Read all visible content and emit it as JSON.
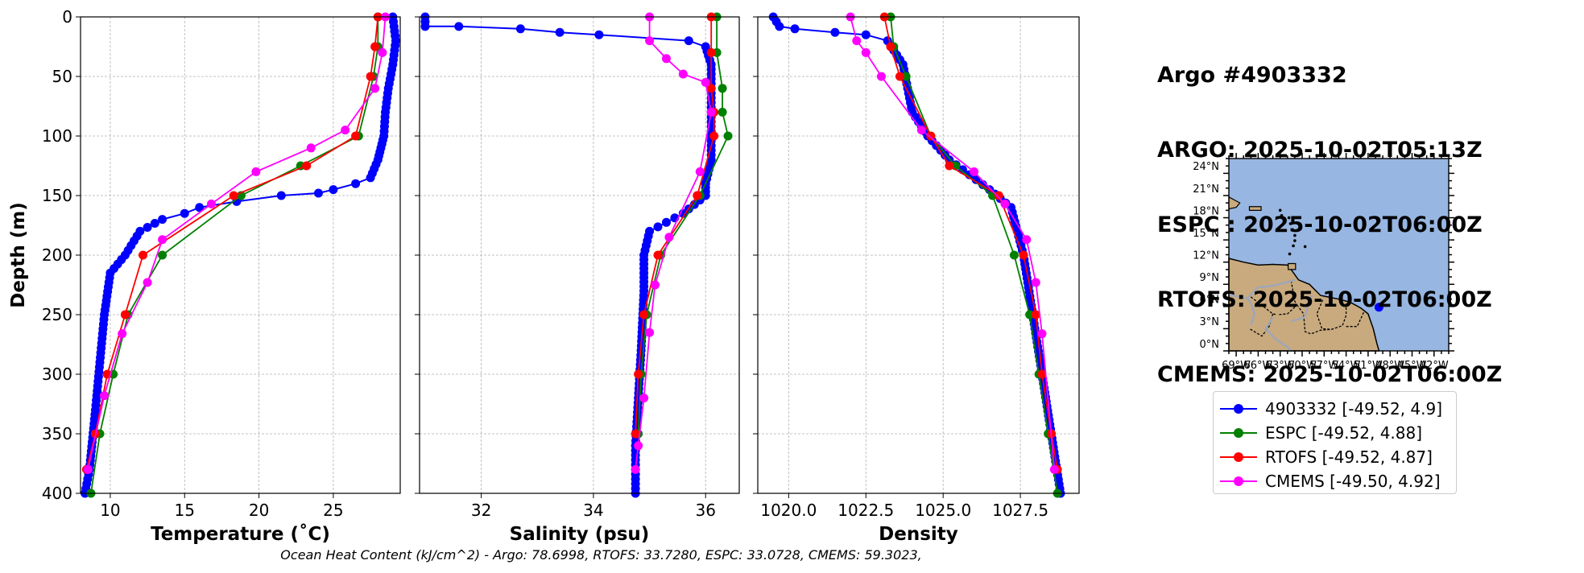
{
  "title": {
    "lines": [
      "Argo #4903332",
      "ARGO: 2025-10-02T05:13Z",
      "ESPC : 2025-10-02T06:00Z",
      "RTOFS: 2025-10-02T06:00Z",
      "CMEMS: 2025-10-02T06:00Z"
    ]
  },
  "footer": "Ocean Heat Content (kJ/cm^2) - Argo: 78.6998,  RTOFS: 33.7280,  ESPC: 33.0728,  CMEMS: 59.3023,",
  "colors": {
    "argo": "#0000ff",
    "espc": "#008000",
    "rtofs": "#ff0000",
    "cmems": "#ff00ff",
    "ocean": "#97b6e1",
    "land": "#c8aa7e"
  },
  "legend": [
    {
      "label": "4903332 [-49.52, 4.9]",
      "color": "#0000ff"
    },
    {
      "label": "ESPC [-49.52, 4.88]",
      "color": "#008000"
    },
    {
      "label": "RTOFS [-49.52, 4.87]",
      "color": "#ff0000"
    },
    {
      "label": "CMEMS [-49.50, 4.92]",
      "color": "#ff00ff"
    }
  ],
  "chart_data": [
    {
      "type": "line",
      "name": "temperature",
      "xlabel": "Temperature (˚C)",
      "ylabel": "Depth (m)",
      "xlim": [
        8,
        29.5
      ],
      "ylim": [
        400,
        0
      ],
      "xticks": [
        10,
        15,
        20,
        25
      ],
      "yticks": [
        0,
        50,
        100,
        150,
        200,
        250,
        300,
        350,
        400
      ],
      "grid": true,
      "series": [
        {
          "name": "4903332",
          "color": "#0000ff",
          "x": [
            29.0,
            29.2,
            29.0,
            28.7,
            28.5,
            28.4,
            28.2,
            28.0,
            27.5,
            26.5,
            25.0,
            24.0,
            21.5,
            18.5,
            16.0,
            15.0,
            13.5,
            12.0,
            11.0,
            10.0,
            9.6,
            9.3,
            9.0,
            8.6,
            8.3
          ],
          "y": [
            0,
            20,
            40,
            60,
            80,
            100,
            110,
            120,
            135,
            140,
            145,
            148,
            150,
            155,
            160,
            165,
            170,
            180,
            200,
            215,
            250,
            290,
            330,
            380,
            400
          ]
        },
        {
          "name": "ESPC",
          "color": "#008000",
          "x": [
            28.0,
            28.0,
            27.7,
            26.7,
            22.8,
            18.8,
            13.5,
            11.2,
            10.2,
            9.3,
            8.7
          ],
          "y": [
            0,
            25,
            50,
            100,
            125,
            150,
            200,
            250,
            300,
            350,
            400
          ]
        },
        {
          "name": "RTOFS",
          "color": "#ff0000",
          "x": [
            28.0,
            27.8,
            27.5,
            26.5,
            23.2,
            18.3,
            12.2,
            11.0,
            9.8,
            9.0,
            8.4
          ],
          "y": [
            0,
            25,
            50,
            100,
            125,
            150,
            200,
            250,
            300,
            350,
            380
          ]
        },
        {
          "name": "CMEMS",
          "color": "#ff00ff",
          "x": [
            28.5,
            28.3,
            27.8,
            25.8,
            23.5,
            19.8,
            16.8,
            13.5,
            12.5,
            10.8,
            9.6,
            8.5
          ],
          "y": [
            0,
            30,
            60,
            95,
            110,
            130,
            157,
            187,
            223,
            266,
            318,
            380
          ]
        }
      ]
    },
    {
      "type": "line",
      "name": "salinity",
      "xlabel": "Salinity (psu)",
      "ylabel": "",
      "xlim": [
        30.9,
        36.6
      ],
      "ylim": [
        400,
        0
      ],
      "xticks": [
        32,
        34,
        36
      ],
      "yticks": [
        0,
        50,
        100,
        150,
        200,
        250,
        300,
        350,
        400
      ],
      "grid": true,
      "series": [
        {
          "name": "4903332",
          "color": "#0000ff",
          "x": [
            31.0,
            31.0,
            31.6,
            32.7,
            33.4,
            34.1,
            35.7,
            36.0,
            36.1,
            36.1,
            36.1,
            36.0,
            36.0,
            35.6,
            35.0,
            34.9,
            34.9,
            34.85,
            34.8,
            34.75,
            34.75
          ],
          "y": [
            0,
            8,
            8,
            10,
            13,
            15,
            20,
            25,
            40,
            80,
            120,
            140,
            150,
            165,
            180,
            200,
            230,
            280,
            320,
            360,
            400
          ]
        },
        {
          "name": "ESPC",
          "color": "#008000",
          "x": [
            36.2,
            36.2,
            36.3,
            36.3,
            36.4,
            35.9,
            35.2,
            34.95,
            34.85,
            34.8
          ],
          "y": [
            0,
            30,
            60,
            80,
            100,
            150,
            200,
            250,
            300,
            350
          ]
        },
        {
          "name": "RTOFS",
          "color": "#ff0000",
          "x": [
            36.1,
            36.1,
            36.1,
            36.15,
            36.15,
            35.85,
            35.15,
            34.9,
            34.8,
            34.75
          ],
          "y": [
            0,
            30,
            60,
            80,
            100,
            150,
            200,
            250,
            300,
            350
          ]
        },
        {
          "name": "CMEMS",
          "color": "#ff00ff",
          "x": [
            35.0,
            35.0,
            35.3,
            35.6,
            36.0,
            36.1,
            35.9,
            35.35,
            35.1,
            35.0,
            34.9,
            34.8,
            34.75
          ],
          "y": [
            0,
            20,
            35,
            48,
            55,
            80,
            130,
            185,
            225,
            265,
            320,
            360,
            380
          ]
        }
      ]
    },
    {
      "type": "line",
      "name": "density",
      "xlabel": "Density",
      "ylabel": "",
      "xlim": [
        1019.0,
        1029.4
      ],
      "ylim": [
        400,
        0
      ],
      "xticks": [
        1020.0,
        1022.5,
        1025.0,
        1027.5
      ],
      "ticklabels": [
        "1020.0",
        "1022.5",
        "1025.0",
        "1027.5"
      ],
      "yticks": [
        0,
        50,
        100,
        150,
        200,
        250,
        300,
        350,
        400
      ],
      "grid": true,
      "series": [
        {
          "name": "4903332",
          "color": "#0000ff",
          "x": [
            1019.5,
            1019.7,
            1020.2,
            1021.5,
            1022.5,
            1023.2,
            1023.7,
            1024.0,
            1024.5,
            1025.2,
            1026.5,
            1027.2,
            1027.6,
            1027.9,
            1028.2,
            1028.5,
            1028.8
          ],
          "y": [
            0,
            8,
            10,
            13,
            15,
            20,
            40,
            80,
            100,
            120,
            145,
            160,
            200,
            250,
            300,
            350,
            400
          ]
        },
        {
          "name": "ESPC",
          "color": "#008000",
          "x": [
            1023.3,
            1023.4,
            1023.8,
            1024.6,
            1025.4,
            1026.6,
            1027.3,
            1027.8,
            1028.1,
            1028.4,
            1028.7
          ],
          "y": [
            0,
            25,
            50,
            100,
            125,
            150,
            200,
            250,
            300,
            350,
            400
          ]
        },
        {
          "name": "RTOFS",
          "color": "#ff0000",
          "x": [
            1023.1,
            1023.3,
            1023.6,
            1024.6,
            1025.2,
            1026.8,
            1027.6,
            1028.0,
            1028.2,
            1028.5,
            1028.7
          ],
          "y": [
            0,
            25,
            50,
            100,
            125,
            150,
            200,
            250,
            300,
            350,
            380
          ]
        },
        {
          "name": "CMEMS",
          "color": "#ff00ff",
          "x": [
            1022.0,
            1022.2,
            1022.5,
            1023.0,
            1024.3,
            1026.0,
            1027.0,
            1027.7,
            1028.0,
            1028.2,
            1028.6
          ],
          "y": [
            0,
            20,
            30,
            50,
            95,
            130,
            157,
            187,
            223,
            266,
            380
          ]
        }
      ]
    },
    {
      "type": "map",
      "name": "location-map",
      "xticklabels": [
        "69°W",
        "66°W",
        "63°W",
        "60°W",
        "57°W",
        "54°W",
        "51°W",
        "48°W",
        "45°W",
        "42°W"
      ],
      "yticklabels": [
        "0°N",
        "3°N",
        "6°N",
        "9°N",
        "12°N",
        "15°N",
        "18°N",
        "21°N",
        "24°N"
      ],
      "lon_range": [
        -70,
        -40
      ],
      "lat_range": [
        -1,
        25
      ],
      "marker": {
        "lon": -49.52,
        "lat": 4.9
      }
    }
  ]
}
